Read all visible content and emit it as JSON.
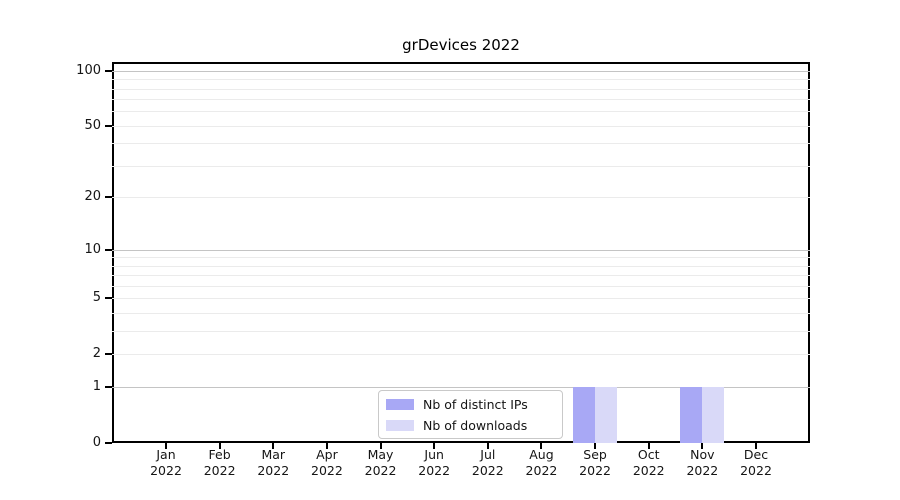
{
  "chart_data": {
    "type": "bar",
    "title": "grDevices 2022",
    "categories": [
      "Jan",
      "Feb",
      "Mar",
      "Apr",
      "May",
      "Jun",
      "Jul",
      "Aug",
      "Sep",
      "Oct",
      "Nov",
      "Dec"
    ],
    "x_year_label": "2022",
    "series": [
      {
        "name": "Nb of distinct IPs",
        "color": "#a8a8f5",
        "values": [
          0,
          0,
          0,
          0,
          0,
          0,
          0,
          0,
          1,
          0,
          1,
          0
        ]
      },
      {
        "name": "Nb of downloads",
        "color": "#d9d9f8",
        "values": [
          0,
          0,
          0,
          0,
          0,
          0,
          0,
          0,
          1,
          0,
          1,
          0
        ]
      }
    ],
    "y_scale": "log1p",
    "y_tick_values": [
      0,
      1,
      2,
      5,
      10,
      20,
      50,
      100
    ],
    "y_tick_labels": [
      "0",
      "1",
      "2",
      "5",
      "10",
      "20",
      "50",
      "100"
    ],
    "ylim": [
      0,
      111.5
    ],
    "grid": "horizontal",
    "gridline_decade_values": [
      1,
      10,
      100
    ],
    "gridline_minor_values": [
      2,
      3,
      4,
      5,
      6,
      7,
      8,
      9,
      20,
      30,
      40,
      50,
      60,
      70,
      80,
      90
    ],
    "legend_position": "lower center",
    "colors": {
      "gridline_decade": "#c4c4c4",
      "gridline_minor": "#ebebeb",
      "axis": "#000000",
      "text": "#151515"
    }
  }
}
